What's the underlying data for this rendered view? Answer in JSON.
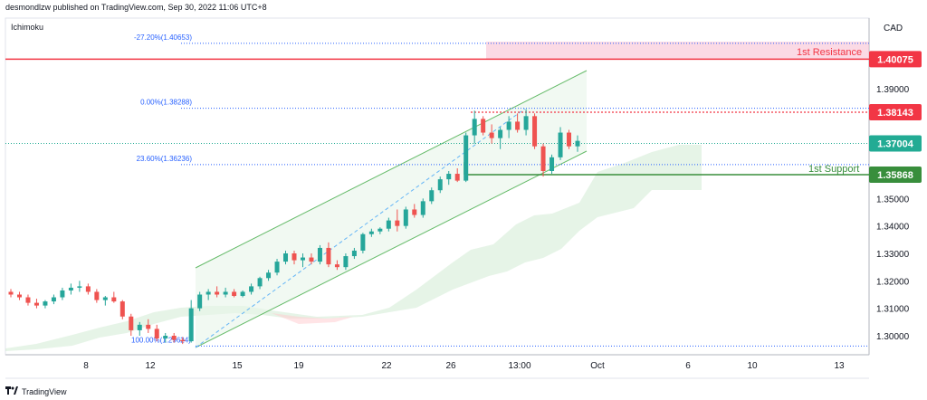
{
  "header": {
    "publisher_line": "desmondlzw published on TradingView.com, Sep 30, 2022 11:06 UTC+8",
    "indicator": "Ichimoku",
    "footer": "TradingView",
    "logo_icon": "tradingview-logo-icon"
  },
  "chart_data": {
    "type": "candlestick",
    "symbol_currency": "CAD",
    "ylim": [
      1.295,
      1.41
    ],
    "y_ticks": [
      1.3,
      1.31,
      1.32,
      1.33,
      1.34,
      1.35,
      1.39
    ],
    "y_tick_labels": [
      "1.30000",
      "1.31000",
      "1.32000",
      "1.33000",
      "1.34000",
      "1.35000",
      "1.39000"
    ],
    "x_ticks": [
      "8",
      "12",
      "15",
      "19",
      "22",
      "26",
      "13:00",
      "Oct",
      "6",
      "10",
      "13"
    ],
    "price_tags": [
      {
        "value": 1.40075,
        "label": "1.40075",
        "color": "#f23645"
      },
      {
        "value": 1.38143,
        "label": "1.38143",
        "color": "#f23645"
      },
      {
        "value": 1.37004,
        "label": "1.37004",
        "color": "#22ab94"
      },
      {
        "value": 1.35868,
        "label": "1.35868",
        "color": "#388e3c"
      }
    ],
    "levels": [
      {
        "name": "1st Resistance",
        "value": 1.40075,
        "color": "#f23645"
      },
      {
        "name": "1st Support",
        "value": 1.35868,
        "color": "#388e3c"
      }
    ],
    "fibonacci": [
      {
        "label": "-27.20%(1.40653)",
        "value": 1.40653
      },
      {
        "label": "0.00%(1.38288)",
        "value": 1.38288
      },
      {
        "label": "23.60%(1.36236)",
        "value": 1.36236
      },
      {
        "label": "100.00%(1.29624)",
        "value": 1.29624
      }
    ],
    "candles": [
      [
        1.316,
        1.317,
        1.314,
        1.315
      ],
      [
        1.315,
        1.316,
        1.313,
        1.314
      ],
      [
        1.314,
        1.315,
        1.311,
        1.312
      ],
      [
        1.312,
        1.3135,
        1.31,
        1.311
      ],
      [
        1.311,
        1.313,
        1.31,
        1.3125
      ],
      [
        1.3125,
        1.315,
        1.3115,
        1.314
      ],
      [
        1.314,
        1.3175,
        1.313,
        1.3165
      ],
      [
        1.3165,
        1.319,
        1.315,
        1.3175
      ],
      [
        1.3175,
        1.32,
        1.316,
        1.318
      ],
      [
        1.318,
        1.319,
        1.315,
        1.316
      ],
      [
        1.316,
        1.317,
        1.312,
        1.313
      ],
      [
        1.313,
        1.3145,
        1.311,
        1.314
      ],
      [
        1.314,
        1.316,
        1.312,
        1.3125
      ],
      [
        1.3125,
        1.313,
        1.306,
        1.307
      ],
      [
        1.307,
        1.308,
        1.3,
        1.302
      ],
      [
        1.302,
        1.305,
        1.3,
        1.304
      ],
      [
        1.304,
        1.306,
        1.301,
        1.3025
      ],
      [
        1.3025,
        1.304,
        1.298,
        1.299
      ],
      [
        1.299,
        1.301,
        1.2975,
        1.3
      ],
      [
        1.3,
        1.301,
        1.2975,
        1.2985
      ],
      [
        1.2985,
        1.2995,
        1.297,
        1.298
      ],
      [
        1.298,
        1.313,
        1.2975,
        1.31
      ],
      [
        1.31,
        1.316,
        1.309,
        1.315
      ],
      [
        1.315,
        1.317,
        1.313,
        1.316
      ],
      [
        1.316,
        1.318,
        1.314,
        1.315
      ],
      [
        1.315,
        1.3175,
        1.314,
        1.316
      ],
      [
        1.316,
        1.317,
        1.314,
        1.3145
      ],
      [
        1.3145,
        1.3165,
        1.314,
        1.316
      ],
      [
        1.316,
        1.319,
        1.315,
        1.318
      ],
      [
        1.318,
        1.3215,
        1.317,
        1.321
      ],
      [
        1.321,
        1.324,
        1.32,
        1.323
      ],
      [
        1.323,
        1.328,
        1.322,
        1.327
      ],
      [
        1.327,
        1.331,
        1.326,
        1.33
      ],
      [
        1.33,
        1.331,
        1.326,
        1.3275
      ],
      [
        1.3275,
        1.33,
        1.325,
        1.3285
      ],
      [
        1.3285,
        1.33,
        1.326,
        1.327
      ],
      [
        1.327,
        1.333,
        1.326,
        1.332
      ],
      [
        1.332,
        1.334,
        1.325,
        1.326
      ],
      [
        1.326,
        1.3275,
        1.324,
        1.325
      ],
      [
        1.325,
        1.33,
        1.324,
        1.329
      ],
      [
        1.329,
        1.332,
        1.328,
        1.331
      ],
      [
        1.331,
        1.3375,
        1.33,
        1.337
      ],
      [
        1.337,
        1.339,
        1.336,
        1.338
      ],
      [
        1.338,
        1.3395,
        1.337,
        1.339
      ],
      [
        1.339,
        1.343,
        1.338,
        1.342
      ],
      [
        1.342,
        1.346,
        1.338,
        1.34
      ],
      [
        1.34,
        1.347,
        1.339,
        1.346
      ],
      [
        1.346,
        1.348,
        1.343,
        1.344
      ],
      [
        1.344,
        1.35,
        1.343,
        1.349
      ],
      [
        1.349,
        1.354,
        1.348,
        1.353
      ],
      [
        1.353,
        1.358,
        1.352,
        1.357
      ],
      [
        1.357,
        1.36,
        1.355,
        1.359
      ],
      [
        1.359,
        1.361,
        1.356,
        1.3565
      ],
      [
        1.3565,
        1.374,
        1.356,
        1.373
      ],
      [
        1.373,
        1.382,
        1.37,
        1.379
      ],
      [
        1.379,
        1.38,
        1.373,
        1.374
      ],
      [
        1.374,
        1.377,
        1.37,
        1.372
      ],
      [
        1.372,
        1.376,
        1.368,
        1.375
      ],
      [
        1.375,
        1.38,
        1.372,
        1.378
      ],
      [
        1.378,
        1.381,
        1.374,
        1.375
      ],
      [
        1.375,
        1.3825,
        1.373,
        1.38
      ],
      [
        1.38,
        1.381,
        1.368,
        1.369
      ],
      [
        1.369,
        1.37,
        1.358,
        1.36
      ],
      [
        1.36,
        1.366,
        1.359,
        1.365
      ],
      [
        1.365,
        1.376,
        1.364,
        1.374
      ],
      [
        1.374,
        1.375,
        1.368,
        1.369
      ],
      [
        1.369,
        1.373,
        1.367,
        1.371
      ]
    ]
  },
  "labels": {
    "resistance": "1st Resistance",
    "support": "1st Support"
  }
}
